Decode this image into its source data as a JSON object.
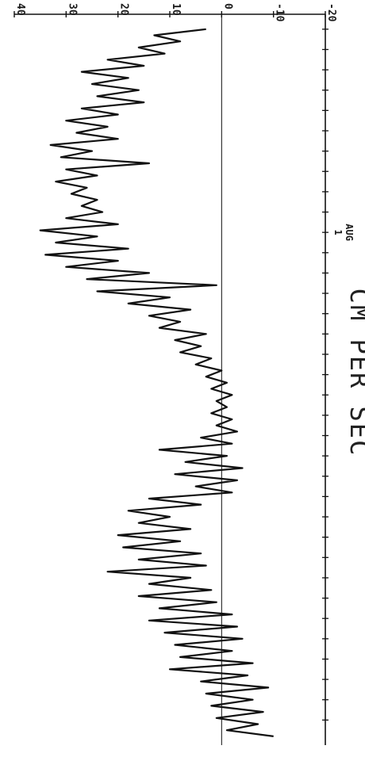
{
  "chart_data": {
    "type": "line",
    "orientation": "rotated-90",
    "ylabel": "CM PER SEC",
    "xlabel": "",
    "ylim": [
      -20,
      40
    ],
    "yticks": [
      40,
      30,
      20,
      10,
      0,
      -10,
      -20
    ],
    "ytick_labels": [
      "40",
      "30",
      "20",
      "10",
      "0",
      "-10",
      "-20"
    ],
    "x_major_label": {
      "value": 10,
      "lines": [
        "1",
        "AUG"
      ]
    },
    "x_range": [
      -0.5,
      35
    ],
    "zero_line": true,
    "series": [
      {
        "color": "#111111",
        "points": [
          [
            0.0,
            3
          ],
          [
            0.3,
            13
          ],
          [
            0.6,
            8
          ],
          [
            0.9,
            16
          ],
          [
            1.2,
            11
          ],
          [
            1.5,
            22
          ],
          [
            1.8,
            15
          ],
          [
            2.1,
            27
          ],
          [
            2.4,
            18
          ],
          [
            2.7,
            25
          ],
          [
            3.0,
            16
          ],
          [
            3.3,
            24
          ],
          [
            3.6,
            15
          ],
          [
            3.9,
            27
          ],
          [
            4.2,
            20
          ],
          [
            4.5,
            30
          ],
          [
            4.8,
            22
          ],
          [
            5.1,
            28
          ],
          [
            5.4,
            20
          ],
          [
            5.7,
            33
          ],
          [
            6.0,
            25
          ],
          [
            6.3,
            31
          ],
          [
            6.6,
            14
          ],
          [
            6.9,
            30
          ],
          [
            7.2,
            24
          ],
          [
            7.5,
            32
          ],
          [
            7.8,
            26
          ],
          [
            8.1,
            29
          ],
          [
            8.4,
            24
          ],
          [
            8.7,
            27
          ],
          [
            9.0,
            23
          ],
          [
            9.3,
            30
          ],
          [
            9.6,
            20
          ],
          [
            9.9,
            35
          ],
          [
            10.2,
            24
          ],
          [
            10.5,
            32
          ],
          [
            10.8,
            18
          ],
          [
            11.1,
            34
          ],
          [
            11.4,
            20
          ],
          [
            11.7,
            30
          ],
          [
            12.0,
            14
          ],
          [
            12.3,
            26
          ],
          [
            12.6,
            1
          ],
          [
            12.9,
            24
          ],
          [
            13.2,
            10
          ],
          [
            13.5,
            18
          ],
          [
            13.8,
            6
          ],
          [
            14.1,
            14
          ],
          [
            14.4,
            8
          ],
          [
            14.7,
            12
          ],
          [
            15.0,
            3
          ],
          [
            15.3,
            9
          ],
          [
            15.6,
            4
          ],
          [
            15.9,
            8
          ],
          [
            16.2,
            2
          ],
          [
            16.5,
            5
          ],
          [
            16.8,
            0
          ],
          [
            17.1,
            3
          ],
          [
            17.4,
            -1
          ],
          [
            17.7,
            2
          ],
          [
            18.0,
            -2
          ],
          [
            18.3,
            1
          ],
          [
            18.6,
            -1
          ],
          [
            18.9,
            2
          ],
          [
            19.2,
            -2
          ],
          [
            19.5,
            1
          ],
          [
            19.8,
            -3
          ],
          [
            20.1,
            4
          ],
          [
            20.4,
            -2
          ],
          [
            20.7,
            12
          ],
          [
            21.0,
            -1
          ],
          [
            21.3,
            7
          ],
          [
            21.6,
            -4
          ],
          [
            21.9,
            9
          ],
          [
            22.2,
            -3
          ],
          [
            22.5,
            5
          ],
          [
            22.8,
            -2
          ],
          [
            23.1,
            14
          ],
          [
            23.4,
            4
          ],
          [
            23.7,
            18
          ],
          [
            24.0,
            10
          ],
          [
            24.3,
            16
          ],
          [
            24.6,
            6
          ],
          [
            24.9,
            20
          ],
          [
            25.2,
            8
          ],
          [
            25.5,
            19
          ],
          [
            25.8,
            4
          ],
          [
            26.1,
            16
          ],
          [
            26.4,
            3
          ],
          [
            26.7,
            22
          ],
          [
            27.0,
            6
          ],
          [
            27.3,
            14
          ],
          [
            27.6,
            2
          ],
          [
            27.9,
            16
          ],
          [
            28.2,
            1
          ],
          [
            28.5,
            12
          ],
          [
            28.8,
            -2
          ],
          [
            29.1,
            14
          ],
          [
            29.4,
            -3
          ],
          [
            29.7,
            11
          ],
          [
            30.0,
            -4
          ],
          [
            30.3,
            9
          ],
          [
            30.6,
            -2
          ],
          [
            30.9,
            8
          ],
          [
            31.2,
            -6
          ],
          [
            31.5,
            10
          ],
          [
            31.8,
            -5
          ],
          [
            32.1,
            4
          ],
          [
            32.4,
            -9
          ],
          [
            32.7,
            3
          ],
          [
            33.0,
            -6
          ],
          [
            33.3,
            2
          ],
          [
            33.6,
            -8
          ],
          [
            33.9,
            1
          ],
          [
            34.2,
            -7
          ],
          [
            34.5,
            -1
          ],
          [
            34.8,
            -10
          ]
        ]
      }
    ]
  }
}
